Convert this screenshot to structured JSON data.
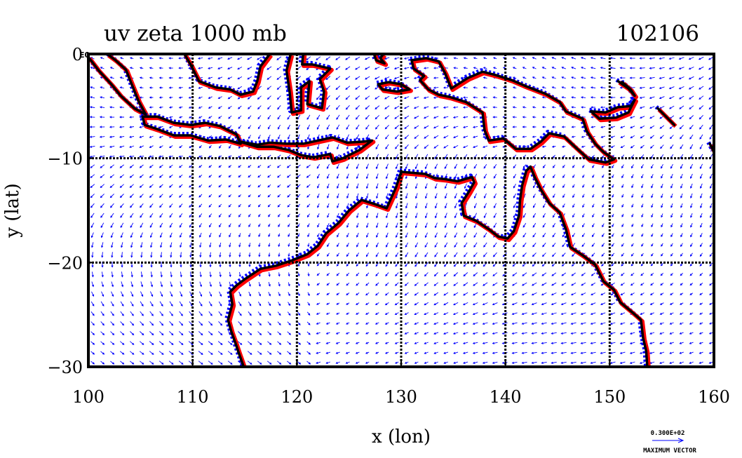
{
  "chart_data": {
    "type": "vector-contour map",
    "title": "uv zeta 1000 mb",
    "date_label": "102106",
    "xlabel": "x (lon)",
    "ylabel": "y (lat)",
    "xlim": [
      100,
      160
    ],
    "ylim": [
      -30,
      0
    ],
    "x_ticks": [
      100,
      110,
      120,
      130,
      140,
      150,
      160
    ],
    "y_ticks": [
      -30,
      -20,
      -10,
      0
    ],
    "x_tick_labels": [
      "100",
      "110",
      "120",
      "130",
      "140",
      "150",
      "160"
    ],
    "y_tick_labels": [
      "−30",
      "−20",
      "−10",
      "0"
    ],
    "y_top_exponent": "E0",
    "grid": true,
    "reference_vector": {
      "magnitude_label": "0.300E+02",
      "caption": "MAXIMUM VECTOR"
    },
    "layers": [
      {
        "name": "coastline",
        "color": "#000000"
      },
      {
        "name": "zeta positive",
        "color": "#ff0000"
      },
      {
        "name": "zeta negative",
        "color": "#0000ff"
      },
      {
        "name": "wind vectors",
        "color": "#0000ff"
      }
    ],
    "coastlines": [
      {
        "name": "australia",
        "points": [
          [
            130.0,
            -11.3
          ],
          [
            131.2,
            -11.4
          ],
          [
            132.3,
            -11.5
          ],
          [
            133.2,
            -11.9
          ],
          [
            134.2,
            -12.0
          ],
          [
            135.4,
            -12.2
          ],
          [
            136.8,
            -11.8
          ],
          [
            137.0,
            -12.3
          ],
          [
            136.5,
            -13.2
          ],
          [
            135.8,
            -14.3
          ],
          [
            136.0,
            -15.5
          ],
          [
            137.2,
            -16.0
          ],
          [
            138.4,
            -16.8
          ],
          [
            139.3,
            -17.5
          ],
          [
            140.2,
            -17.7
          ],
          [
            140.8,
            -17.0
          ],
          [
            141.3,
            -15.5
          ],
          [
            141.4,
            -14.0
          ],
          [
            141.6,
            -12.6
          ],
          [
            142.0,
            -11.2
          ],
          [
            142.4,
            -10.8
          ],
          [
            142.8,
            -11.8
          ],
          [
            143.4,
            -13.0
          ],
          [
            144.2,
            -14.3
          ],
          [
            145.2,
            -15.2
          ],
          [
            145.8,
            -16.8
          ],
          [
            146.2,
            -18.5
          ],
          [
            147.4,
            -19.3
          ],
          [
            148.6,
            -20.2
          ],
          [
            149.4,
            -21.8
          ],
          [
            150.4,
            -22.6
          ],
          [
            151.0,
            -23.8
          ],
          [
            152.2,
            -24.8
          ],
          [
            153.0,
            -25.5
          ],
          [
            153.2,
            -27.2
          ],
          [
            153.5,
            -28.5
          ],
          [
            153.6,
            -30.0
          ]
        ]
      },
      {
        "name": "australia-west",
        "points": [
          [
            130.0,
            -11.3
          ],
          [
            129.5,
            -12.8
          ],
          [
            128.6,
            -14.8
          ],
          [
            127.5,
            -14.4
          ],
          [
            126.2,
            -14.0
          ],
          [
            125.0,
            -15.0
          ],
          [
            124.0,
            -16.2
          ],
          [
            122.8,
            -17.2
          ],
          [
            122.0,
            -18.4
          ],
          [
            121.0,
            -19.2
          ],
          [
            119.5,
            -19.8
          ],
          [
            118.0,
            -20.3
          ],
          [
            116.5,
            -20.6
          ],
          [
            115.0,
            -21.6
          ],
          [
            114.2,
            -22.2
          ],
          [
            113.6,
            -22.8
          ],
          [
            113.8,
            -24.0
          ],
          [
            113.4,
            -25.5
          ],
          [
            113.7,
            -26.6
          ],
          [
            114.1,
            -27.7
          ],
          [
            114.4,
            -28.6
          ],
          [
            114.9,
            -30.0
          ]
        ]
      },
      {
        "name": "sumatra",
        "points": [
          [
            100.0,
            -0.3
          ],
          [
            101.0,
            -1.6
          ],
          [
            102.2,
            -2.9
          ],
          [
            103.1,
            -4.0
          ],
          [
            104.4,
            -5.2
          ],
          [
            105.5,
            -5.8
          ],
          [
            104.8,
            -4.5
          ],
          [
            104.2,
            -3.0
          ],
          [
            103.6,
            -1.5
          ],
          [
            102.6,
            -0.6
          ],
          [
            101.8,
            0.0
          ]
        ]
      },
      {
        "name": "java",
        "points": [
          [
            105.2,
            -6.0
          ],
          [
            106.6,
            -6.0
          ],
          [
            108.2,
            -6.6
          ],
          [
            109.8,
            -6.8
          ],
          [
            111.2,
            -6.6
          ],
          [
            112.6,
            -6.9
          ],
          [
            114.2,
            -7.7
          ],
          [
            114.6,
            -8.6
          ],
          [
            113.2,
            -8.2
          ],
          [
            111.5,
            -8.3
          ],
          [
            109.8,
            -7.8
          ],
          [
            108.2,
            -7.8
          ],
          [
            106.6,
            -7.2
          ],
          [
            105.4,
            -6.8
          ],
          [
            105.2,
            -6.0
          ]
        ]
      },
      {
        "name": "lesser-sunda",
        "points": [
          [
            114.5,
            -8.4
          ],
          [
            116.2,
            -8.7
          ],
          [
            117.4,
            -8.5
          ],
          [
            119.0,
            -8.6
          ],
          [
            120.6,
            -8.6
          ],
          [
            122.0,
            -8.3
          ],
          [
            123.4,
            -8.0
          ],
          [
            124.8,
            -8.5
          ],
          [
            126.4,
            -8.4
          ],
          [
            127.2,
            -8.3
          ],
          [
            126.0,
            -9.2
          ],
          [
            124.4,
            -10.0
          ],
          [
            123.4,
            -10.3
          ],
          [
            123.2,
            -9.6
          ],
          [
            121.6,
            -9.9
          ],
          [
            120.4,
            -9.7
          ],
          [
            119.2,
            -9.2
          ],
          [
            117.8,
            -8.9
          ],
          [
            116.2,
            -8.9
          ],
          [
            114.5,
            -8.4
          ]
        ]
      },
      {
        "name": "borneo",
        "points": [
          [
            109.2,
            0.0
          ],
          [
            109.8,
            -1.0
          ],
          [
            110.6,
            -2.6
          ],
          [
            112.2,
            -3.2
          ],
          [
            113.6,
            -3.4
          ],
          [
            114.6,
            -3.9
          ],
          [
            115.8,
            -3.6
          ],
          [
            116.2,
            -2.6
          ],
          [
            116.5,
            -1.2
          ],
          [
            117.4,
            0.0
          ]
        ]
      },
      {
        "name": "sulawesi",
        "points": [
          [
            119.4,
            0.0
          ],
          [
            119.0,
            -1.6
          ],
          [
            119.3,
            -3.6
          ],
          [
            119.5,
            -5.6
          ],
          [
            120.4,
            -5.4
          ],
          [
            120.4,
            -3.2
          ],
          [
            121.2,
            -2.6
          ],
          [
            121.0,
            -4.8
          ],
          [
            122.4,
            -5.2
          ],
          [
            122.6,
            -3.6
          ],
          [
            122.2,
            -2.4
          ],
          [
            123.2,
            -1.4
          ],
          [
            121.5,
            -1.0
          ],
          [
            120.5,
            -1.0
          ],
          [
            120.6,
            0.0
          ]
        ]
      },
      {
        "name": "halmahera",
        "points": [
          [
            127.4,
            0.0
          ],
          [
            127.6,
            -0.6
          ],
          [
            128.4,
            -0.9
          ],
          [
            128.0,
            -0.4
          ],
          [
            128.3,
            0.0
          ]
        ]
      },
      {
        "name": "seram",
        "points": [
          [
            127.8,
            -2.9
          ],
          [
            128.8,
            -2.7
          ],
          [
            130.0,
            -2.9
          ],
          [
            130.8,
            -3.4
          ],
          [
            129.6,
            -3.6
          ],
          [
            128.2,
            -3.4
          ],
          [
            127.8,
            -2.9
          ]
        ]
      },
      {
        "name": "new-guinea",
        "points": [
          [
            131.0,
            -0.6
          ],
          [
            132.4,
            -0.4
          ],
          [
            133.6,
            -0.7
          ],
          [
            134.2,
            -1.8
          ],
          [
            134.8,
            -3.3
          ],
          [
            136.4,
            -2.3
          ],
          [
            137.8,
            -1.7
          ],
          [
            139.0,
            -2.0
          ],
          [
            140.6,
            -2.5
          ],
          [
            142.0,
            -3.1
          ],
          [
            143.8,
            -3.8
          ],
          [
            145.2,
            -4.6
          ],
          [
            145.8,
            -5.5
          ],
          [
            147.4,
            -6.2
          ],
          [
            147.8,
            -7.4
          ],
          [
            148.6,
            -8.6
          ],
          [
            149.4,
            -9.4
          ],
          [
            150.4,
            -10.1
          ],
          [
            149.6,
            -10.4
          ],
          [
            148.0,
            -10.1
          ],
          [
            147.0,
            -9.2
          ],
          [
            145.6,
            -7.9
          ],
          [
            144.2,
            -7.6
          ],
          [
            143.4,
            -8.4
          ],
          [
            142.4,
            -9.1
          ],
          [
            141.0,
            -9.1
          ],
          [
            139.8,
            -8.1
          ],
          [
            138.4,
            -8.3
          ],
          [
            138.0,
            -7.3
          ],
          [
            137.8,
            -5.6
          ],
          [
            136.2,
            -4.6
          ],
          [
            134.6,
            -4.1
          ],
          [
            133.6,
            -3.9
          ],
          [
            132.6,
            -3.4
          ],
          [
            131.8,
            -2.5
          ],
          [
            132.2,
            -2.1
          ],
          [
            131.2,
            -1.4
          ],
          [
            131.0,
            -0.6
          ]
        ]
      },
      {
        "name": "new-britain",
        "points": [
          [
            148.2,
            -5.5
          ],
          [
            149.6,
            -5.6
          ],
          [
            150.8,
            -5.1
          ],
          [
            152.0,
            -5.0
          ],
          [
            152.4,
            -4.4
          ],
          [
            151.8,
            -5.6
          ],
          [
            150.6,
            -6.1
          ],
          [
            149.0,
            -6.2
          ],
          [
            148.2,
            -5.5
          ]
        ]
      },
      {
        "name": "new-ireland",
        "points": [
          [
            150.8,
            -2.6
          ],
          [
            151.8,
            -3.3
          ],
          [
            152.4,
            -4.0
          ],
          [
            152.0,
            -3.4
          ],
          [
            151.2,
            -2.7
          ]
        ]
      },
      {
        "name": "solomons",
        "points": [
          [
            154.6,
            -5.2
          ],
          [
            155.6,
            -6.2
          ],
          [
            156.2,
            -6.8
          ]
        ]
      },
      {
        "name": "solomons-east",
        "points": [
          [
            159.6,
            -8.6
          ],
          [
            160.0,
            -9.4
          ]
        ]
      }
    ]
  }
}
